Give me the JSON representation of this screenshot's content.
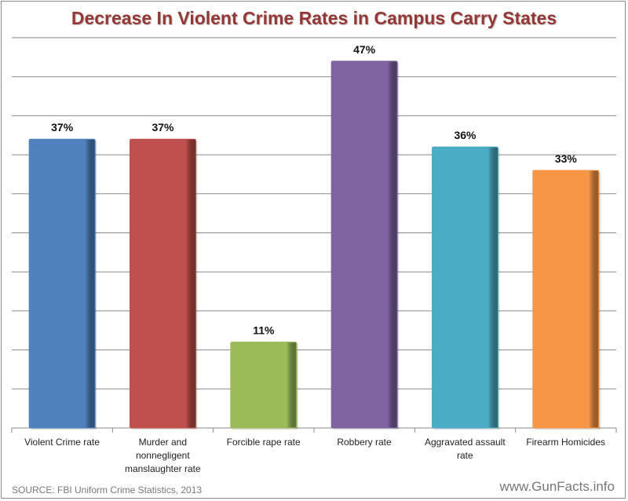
{
  "chart_data": {
    "type": "bar",
    "title": "Decrease In Violent Crime Rates in Campus Carry States",
    "categories": [
      "Violent Crime rate",
      "Murder and nonnegligent manslaughter rate",
      "Forcible rape rate",
      "Robbery rate",
      "Aggravated assault rate",
      "Firearm Homicides"
    ],
    "values": [
      37,
      37,
      11,
      47,
      36,
      33
    ],
    "data_labels": [
      "37%",
      "37%",
      "11%",
      "47%",
      "36%",
      "33%"
    ],
    "colors": [
      "#4F81BD",
      "#C0504D",
      "#9BBB59",
      "#8064A2",
      "#4BACC6",
      "#F79646"
    ],
    "ylim": [
      0,
      50
    ],
    "ytick_step": 5,
    "y_tick_labels_shown": false,
    "grid": true,
    "xlabel": "",
    "ylabel": ""
  },
  "footer": {
    "source": "SOURCE: FBI Uniform Crime Statistics, 2013",
    "site": "www.GunFacts.info"
  }
}
